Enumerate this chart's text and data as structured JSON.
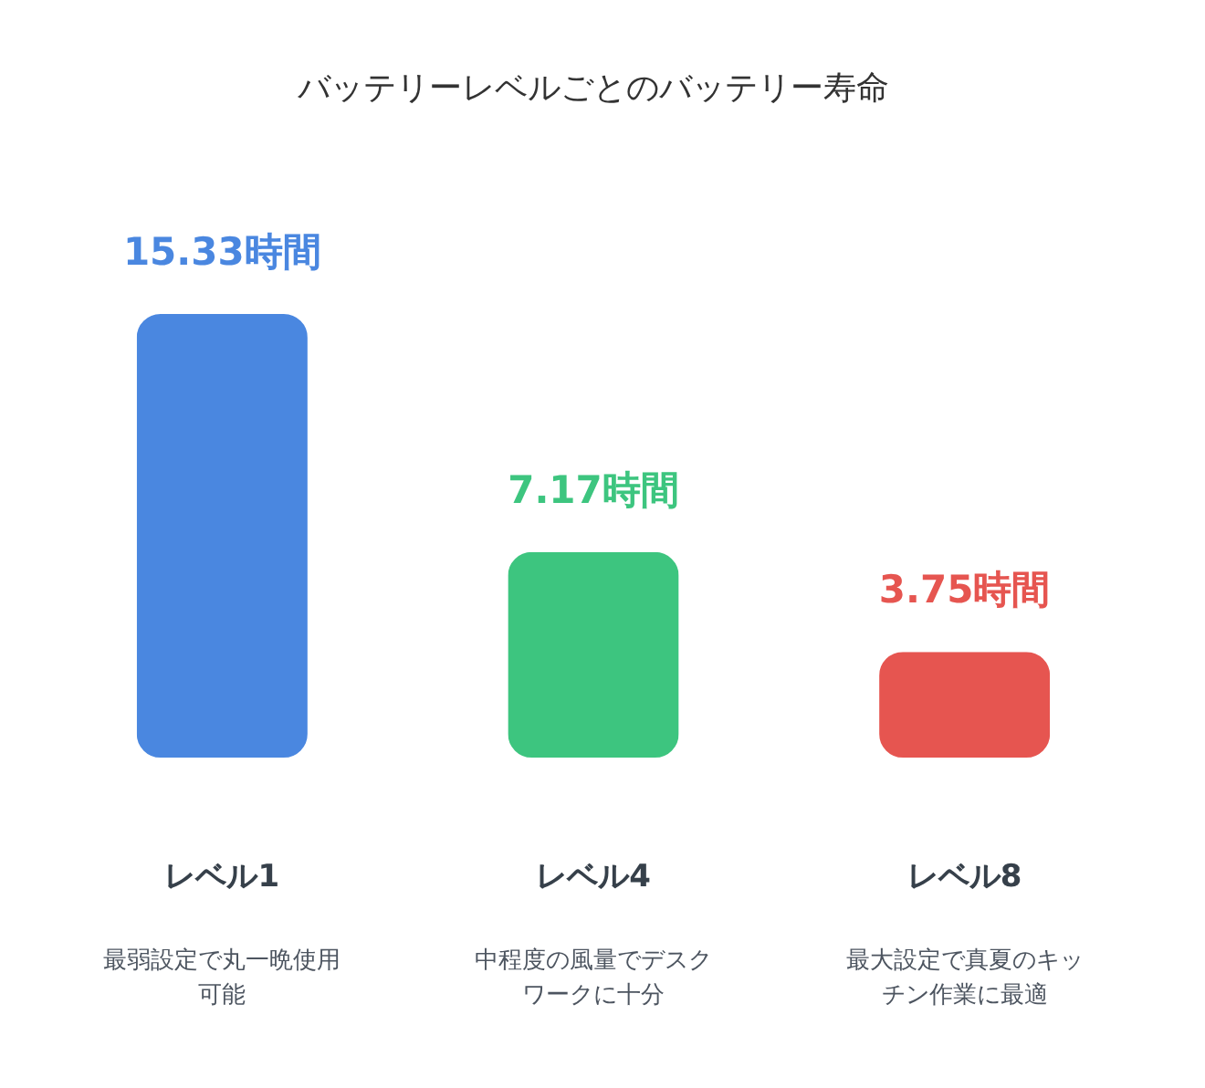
{
  "chart_data": {
    "type": "bar",
    "title": "バッテリーレベルごとのバッテリー寿命",
    "categories": [
      "レベル1",
      "レベル4",
      "レベル8"
    ],
    "values": [
      15.33,
      7.17,
      3.75
    ],
    "colors": [
      "#4a87e0",
      "#3dc57f",
      "#e65550"
    ],
    "value_labels": [
      "15.33時間",
      "7.17時間",
      "3.75時間"
    ],
    "annotations": [
      "最弱設定で丸一晩使用可能",
      "中程度の風量でデスクワークに十分",
      "最大設定で真夏のキッチン作業に最適"
    ]
  }
}
